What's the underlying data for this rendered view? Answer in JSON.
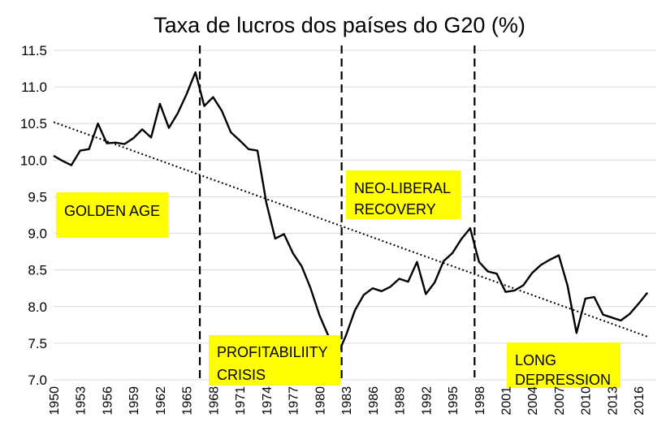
{
  "chart_data": {
    "type": "line",
    "title": "Taxa de lucros dos países do G20 (%)",
    "xlabel": "",
    "ylabel": "",
    "xlim": [
      1950,
      2018
    ],
    "ylim": [
      7.0,
      11.5
    ],
    "yticks": [
      "7.0",
      "7.5",
      "8.0",
      "8.5",
      "9.0",
      "9.5",
      "10.0",
      "10.5",
      "11.0",
      "11.5"
    ],
    "xticks": [
      "1950",
      "1953",
      "1956",
      "1959",
      "1962",
      "1965",
      "1968",
      "1971",
      "1974",
      "1977",
      "1980",
      "1983",
      "1986",
      "1989",
      "1992",
      "1995",
      "1998",
      "2001",
      "2004",
      "2007",
      "2010",
      "2013",
      "2016"
    ],
    "grid": true,
    "series": [
      {
        "values": [
          [
            1950,
            10.06
          ],
          [
            1951,
            9.99
          ],
          [
            1952,
            9.93
          ],
          [
            1953,
            10.13
          ],
          [
            1954,
            10.15
          ],
          [
            1955,
            10.5
          ],
          [
            1956,
            10.23
          ],
          [
            1957,
            10.24
          ],
          [
            1958,
            10.22
          ],
          [
            1959,
            10.3
          ],
          [
            1960,
            10.42
          ],
          [
            1961,
            10.31
          ],
          [
            1962,
            10.77
          ],
          [
            1963,
            10.44
          ],
          [
            1964,
            10.64
          ],
          [
            1965,
            10.9
          ],
          [
            1966,
            11.2
          ],
          [
            1967,
            10.74
          ],
          [
            1968,
            10.86
          ],
          [
            1969,
            10.67
          ],
          [
            1970,
            10.38
          ],
          [
            1971,
            10.27
          ],
          [
            1972,
            10.15
          ],
          [
            1973,
            10.13
          ],
          [
            1974,
            9.42
          ],
          [
            1975,
            8.93
          ],
          [
            1976,
            8.99
          ],
          [
            1977,
            8.73
          ],
          [
            1978,
            8.55
          ],
          [
            1979,
            8.25
          ],
          [
            1980,
            7.88
          ],
          [
            1981,
            7.6
          ],
          [
            1982,
            7.33
          ],
          [
            1983,
            7.61
          ],
          [
            1984,
            7.95
          ],
          [
            1985,
            8.16
          ],
          [
            1986,
            8.25
          ],
          [
            1987,
            8.21
          ],
          [
            1988,
            8.27
          ],
          [
            1989,
            8.38
          ],
          [
            1990,
            8.34
          ],
          [
            1991,
            8.61
          ],
          [
            1992,
            8.17
          ],
          [
            1993,
            8.33
          ],
          [
            1994,
            8.62
          ],
          [
            1995,
            8.73
          ],
          [
            1996,
            8.92
          ],
          [
            1997,
            9.07
          ],
          [
            1998,
            8.61
          ],
          [
            1999,
            8.48
          ],
          [
            2000,
            8.45
          ],
          [
            2001,
            8.2
          ],
          [
            2002,
            8.22
          ],
          [
            2003,
            8.29
          ],
          [
            2004,
            8.46
          ],
          [
            2005,
            8.57
          ],
          [
            2006,
            8.64
          ],
          [
            2007,
            8.7
          ],
          [
            2008,
            8.28
          ],
          [
            2009,
            7.64
          ],
          [
            2010,
            8.11
          ],
          [
            2011,
            8.13
          ],
          [
            2012,
            7.89
          ],
          [
            2013,
            7.85
          ],
          [
            2014,
            7.81
          ],
          [
            2015,
            7.9
          ],
          [
            2016,
            8.04
          ],
          [
            2017,
            8.19
          ]
        ]
      }
    ],
    "trendline": {
      "type": "linear",
      "start": [
        1950,
        10.52
      ],
      "end": [
        2017,
        7.59
      ]
    },
    "period_dividers": [
      1966.5,
      1982.5,
      1997.5
    ],
    "annotations": [
      {
        "text": "GOLDEN AGE"
      },
      {
        "text": "PROFITABILIITY CRISIS"
      },
      {
        "text": "NEO-LIBERAL RECOVERY"
      },
      {
        "text": "LONG DEPRESSION"
      }
    ],
    "colors": {
      "line": "#000000",
      "grid": "#d9d9d9",
      "annotation_bg": "#ffff00"
    }
  }
}
